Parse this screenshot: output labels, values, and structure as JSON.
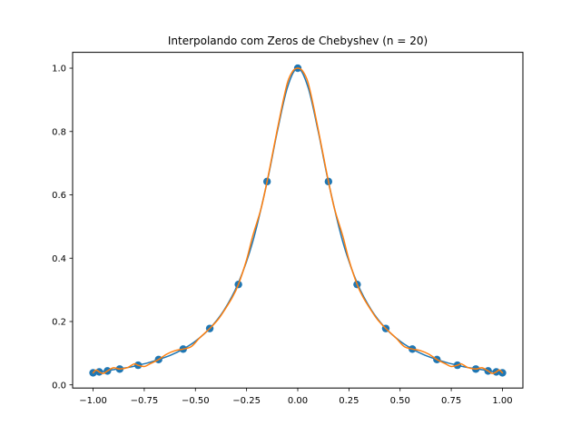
{
  "chart_data": {
    "type": "line",
    "title": "Interpolando com Zeros de Chebyshev (n = 20)",
    "xlabel": "",
    "ylabel": "",
    "xlim": [
      -1.1,
      1.1
    ],
    "ylim": [
      -0.01,
      1.05
    ],
    "xticks": [
      -1.0,
      -0.75,
      -0.5,
      -0.25,
      0.0,
      0.25,
      0.5,
      0.75,
      1.0
    ],
    "xtick_labels": [
      "−1.00",
      "−0.75",
      "−0.50",
      "−0.25",
      "0.00",
      "0.25",
      "0.50",
      "0.75",
      "1.00"
    ],
    "yticks": [
      0.0,
      0.2,
      0.4,
      0.6,
      0.8,
      1.0
    ],
    "ytick_labels": [
      "0.0",
      "0.2",
      "0.4",
      "0.6",
      "0.8",
      "1.0"
    ],
    "grid": false,
    "legend": "none",
    "colors": {
      "true_function": "#1f77b4",
      "interpolant": "#ff7f0e",
      "nodes": "#1f77b4"
    },
    "series": [
      {
        "kind": "scatter",
        "x": [
          -1.0,
          -0.97,
          -0.93,
          -0.87,
          -0.78,
          -0.68,
          -0.56,
          -0.43,
          -0.29,
          -0.15,
          0.0,
          0.15,
          0.29,
          0.43,
          0.56,
          0.68,
          0.78,
          0.87,
          0.93,
          0.97,
          1.0
        ],
        "y": [
          0.038,
          0.041,
          0.044,
          0.05,
          0.062,
          0.08,
          0.113,
          0.178,
          0.317,
          0.642,
          1.0,
          0.642,
          0.317,
          0.178,
          0.113,
          0.08,
          0.062,
          0.05,
          0.044,
          0.041,
          0.038
        ]
      },
      {
        "kind": "line",
        "x": [
          -1.0,
          -0.97,
          -0.93,
          -0.87,
          -0.82,
          -0.78,
          -0.73,
          -0.68,
          -0.62,
          -0.56,
          -0.5,
          -0.43,
          -0.36,
          -0.29,
          -0.22,
          -0.15,
          -0.1,
          -0.05,
          0.0,
          0.05,
          0.1,
          0.15,
          0.22,
          0.29,
          0.36,
          0.43,
          0.5,
          0.56,
          0.62,
          0.68,
          0.73,
          0.78,
          0.82,
          0.87,
          0.93,
          0.97,
          1.0
        ],
        "y": [
          0.038,
          0.041,
          0.045,
          0.051,
          0.056,
          0.062,
          0.07,
          0.08,
          0.094,
          0.113,
          0.138,
          0.178,
          0.236,
          0.322,
          0.452,
          0.64,
          0.8,
          0.94,
          1.0,
          0.94,
          0.8,
          0.64,
          0.452,
          0.322,
          0.236,
          0.178,
          0.138,
          0.113,
          0.094,
          0.08,
          0.07,
          0.062,
          0.056,
          0.051,
          0.045,
          0.041,
          0.038
        ]
      },
      {
        "kind": "line",
        "x": [
          -1.0,
          -0.985,
          -0.97,
          -0.95,
          -0.93,
          -0.9,
          -0.87,
          -0.83,
          -0.8,
          -0.78,
          -0.75,
          -0.72,
          -0.68,
          -0.64,
          -0.6,
          -0.56,
          -0.52,
          -0.48,
          -0.43,
          -0.39,
          -0.36,
          -0.32,
          -0.29,
          -0.25,
          -0.22,
          -0.18,
          -0.15,
          -0.12,
          -0.08,
          -0.05,
          -0.025,
          0.0,
          0.025,
          0.05,
          0.08,
          0.12,
          0.15,
          0.18,
          0.22,
          0.25,
          0.29,
          0.32,
          0.36,
          0.39,
          0.43,
          0.48,
          0.52,
          0.56,
          0.6,
          0.64,
          0.68,
          0.72,
          0.75,
          0.78,
          0.8,
          0.83,
          0.87,
          0.9,
          0.93,
          0.95,
          0.97,
          0.985,
          1.0
        ],
        "y": [
          0.038,
          0.047,
          0.041,
          0.036,
          0.044,
          0.054,
          0.05,
          0.055,
          0.066,
          0.062,
          0.058,
          0.067,
          0.08,
          0.097,
          0.108,
          0.113,
          0.121,
          0.148,
          0.178,
          0.206,
          0.234,
          0.276,
          0.317,
          0.395,
          0.47,
          0.555,
          0.642,
          0.74,
          0.87,
          0.955,
          0.99,
          1.0,
          0.99,
          0.955,
          0.87,
          0.74,
          0.642,
          0.555,
          0.47,
          0.395,
          0.317,
          0.276,
          0.234,
          0.206,
          0.178,
          0.148,
          0.121,
          0.113,
          0.108,
          0.097,
          0.08,
          0.067,
          0.058,
          0.062,
          0.066,
          0.055,
          0.05,
          0.054,
          0.044,
          0.036,
          0.041,
          0.047,
          0.038
        ]
      }
    ]
  }
}
